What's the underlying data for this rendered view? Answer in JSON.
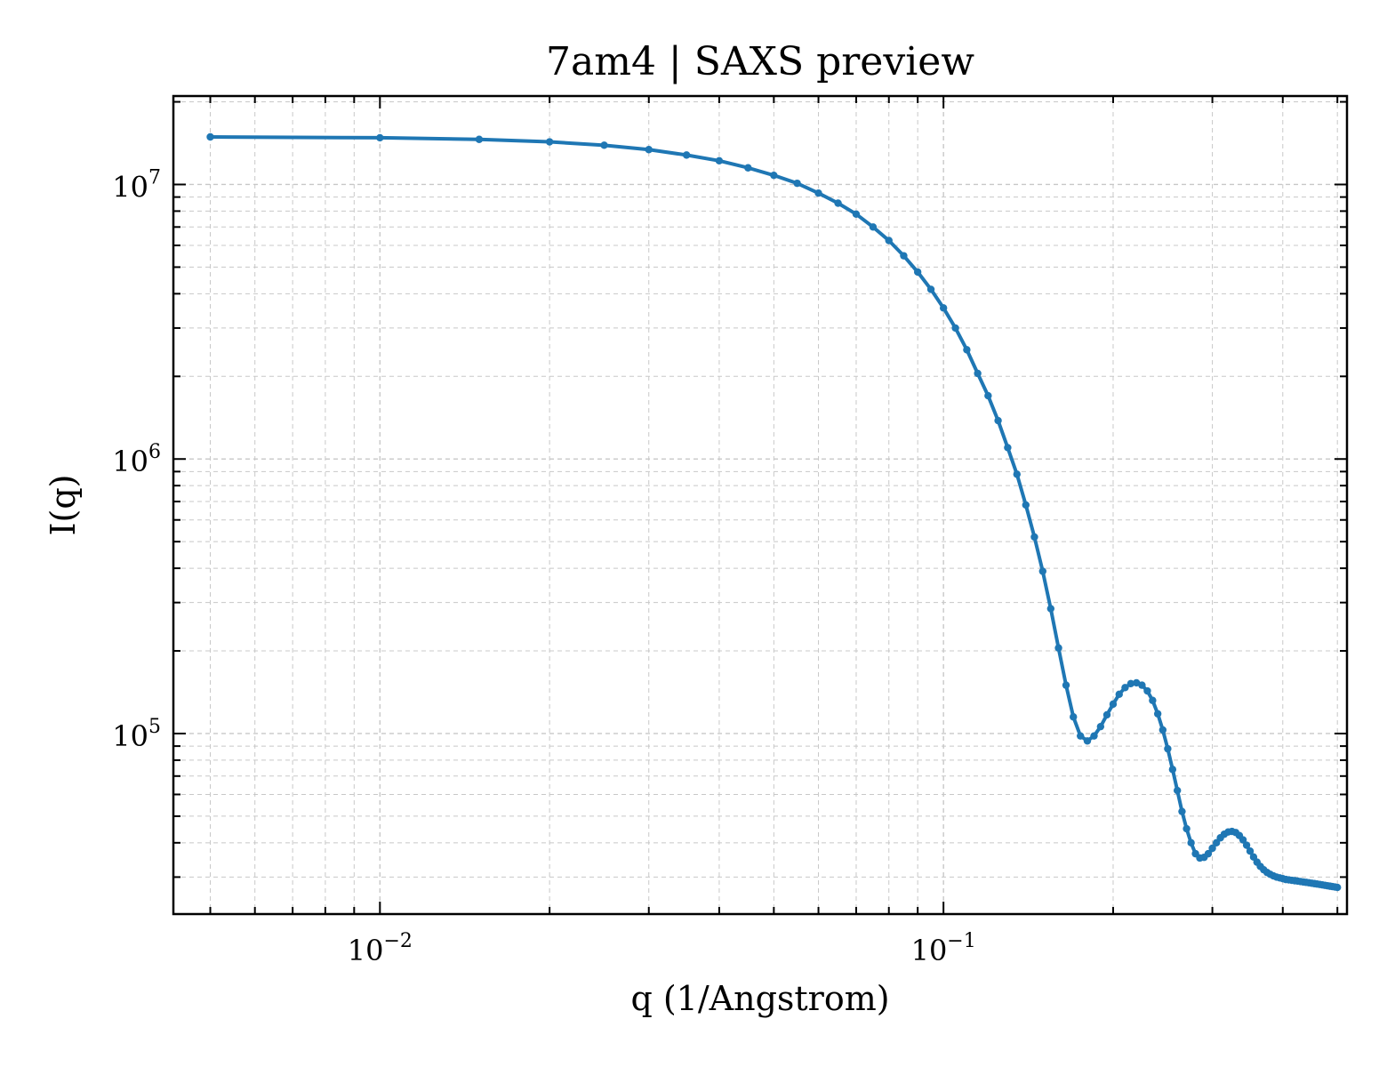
{
  "chart_data": {
    "type": "line",
    "title": "7am4 | SAXS preview",
    "xlabel": "q (1/Angstrom)",
    "ylabel": "I(q)",
    "xscale": "log",
    "yscale": "log",
    "xlim": [
      0.0043,
      0.52
    ],
    "ylim": [
      22000,
      21000000
    ],
    "grid": true,
    "x_ticks": [
      {
        "value": 0.01,
        "base": "10",
        "exp": "−2"
      },
      {
        "value": 0.1,
        "base": "10",
        "exp": "−1"
      }
    ],
    "y_ticks": [
      {
        "value": 100000,
        "base": "10",
        "exp": "5"
      },
      {
        "value": 1000000,
        "base": "10",
        "exp": "6"
      },
      {
        "value": 10000000,
        "base": "10",
        "exp": "7"
      }
    ],
    "color": "#1f77b4",
    "series": [
      {
        "x": [
          0.005,
          0.01,
          0.015,
          0.02,
          0.025,
          0.03,
          0.035,
          0.04,
          0.045,
          0.05,
          0.055,
          0.06,
          0.065,
          0.07,
          0.075,
          0.08,
          0.085,
          0.09,
          0.095,
          0.1,
          0.105,
          0.11,
          0.115,
          0.12,
          0.125,
          0.13,
          0.135,
          0.14,
          0.145,
          0.15,
          0.155,
          0.16,
          0.165,
          0.17,
          0.175,
          0.18,
          0.185,
          0.19,
          0.195,
          0.2,
          0.205,
          0.21,
          0.215,
          0.22,
          0.225,
          0.23,
          0.235,
          0.24,
          0.245,
          0.25,
          0.255,
          0.26,
          0.265,
          0.27,
          0.275,
          0.28,
          0.285,
          0.29,
          0.295,
          0.3,
          0.305,
          0.31,
          0.315,
          0.32,
          0.325,
          0.33,
          0.335,
          0.34,
          0.345,
          0.35,
          0.355,
          0.36,
          0.365,
          0.37,
          0.375,
          0.38,
          0.385,
          0.39,
          0.395,
          0.4,
          0.405,
          0.41,
          0.415,
          0.42,
          0.425,
          0.43,
          0.435,
          0.44,
          0.445,
          0.45,
          0.455,
          0.46,
          0.465,
          0.47,
          0.475,
          0.48,
          0.485,
          0.49,
          0.495,
          0.5
        ],
        "y": [
          14900000,
          14800000,
          14600000,
          14300000,
          13900000,
          13400000,
          12800000,
          12200000,
          11500000,
          10800000,
          10100000,
          9300000,
          8550000,
          7800000,
          7000000,
          6250000,
          5500000,
          4800000,
          4150000,
          3550000,
          3000000,
          2500000,
          2050000,
          1700000,
          1380000,
          1100000,
          880000,
          680000,
          520000,
          390000,
          285000,
          205000,
          150000,
          115000,
          98000,
          94000,
          98000,
          106000,
          117000,
          128000,
          139000,
          147000,
          152000,
          153000,
          150000,
          143000,
          132000,
          118000,
          103000,
          88000,
          74000,
          62000,
          52000,
          45000,
          40000,
          36500,
          35200,
          35400,
          36500,
          38200,
          40000,
          41700,
          43000,
          43800,
          44000,
          43600,
          42500,
          41000,
          39200,
          37300,
          35500,
          34000,
          32800,
          31900,
          31200,
          30700,
          30300,
          30000,
          29800,
          29600,
          29400,
          29300,
          29200,
          29100,
          29000,
          28900,
          28800,
          28700,
          28600,
          28500,
          28400,
          28300,
          28200,
          28100,
          28000,
          27900,
          27800,
          27700,
          27600,
          27500
        ]
      }
    ]
  }
}
